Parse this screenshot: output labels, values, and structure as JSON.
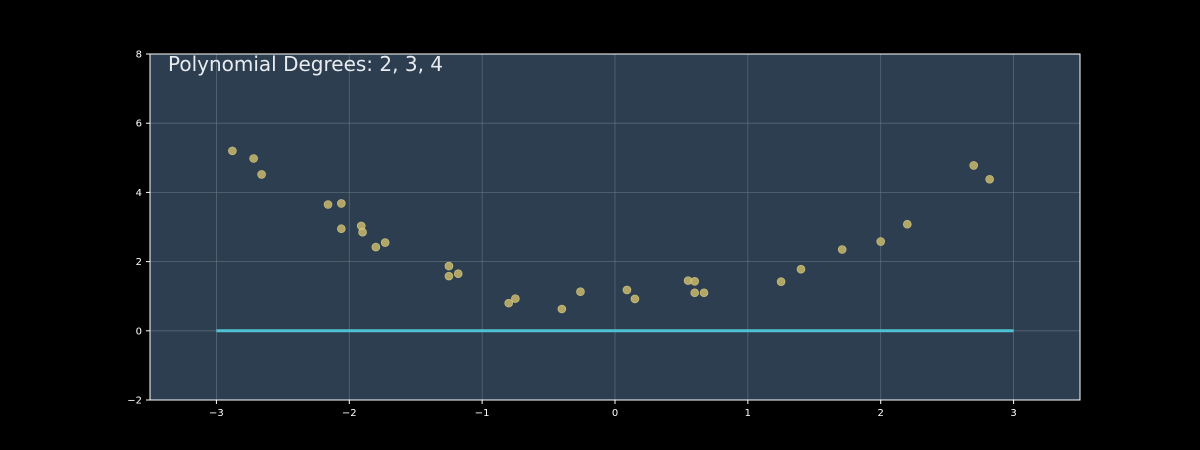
{
  "chart_data": {
    "type": "scatter",
    "title": "Polynomial Degrees: 2, 3, 4",
    "xlabel": "",
    "ylabel": "",
    "xlim": [
      -3.5,
      3.5
    ],
    "ylim": [
      -2,
      8
    ],
    "grid": true,
    "x_ticks": [
      -3,
      -2,
      -1,
      0,
      1,
      2,
      3
    ],
    "x_tick_labels": [
      "−3",
      "−2",
      "−1",
      "0",
      "1",
      "2",
      "3"
    ],
    "y_ticks": [
      -2,
      0,
      2,
      4,
      6,
      8
    ],
    "y_tick_labels": [
      "−2",
      "0",
      "2",
      "4",
      "6",
      "8"
    ],
    "colors": {
      "figure_background": "#000000",
      "plot_background": "#2d3e50",
      "points": "#c9b96a",
      "line": "#4fc1d0",
      "grid": "#6b7b8c"
    },
    "series": [
      {
        "kind": "scatter",
        "x": [
          -2.88,
          -2.72,
          -2.66,
          -2.16,
          -2.06,
          -2.06,
          -1.91,
          -1.9,
          -1.8,
          -1.73,
          -1.25,
          -1.25,
          -1.18,
          -0.8,
          -0.75,
          -0.4,
          -0.26,
          0.09,
          0.15,
          0.55,
          0.6,
          0.6,
          0.67,
          1.25,
          1.4,
          1.71,
          2.0,
          2.2,
          2.7,
          2.82
        ],
        "y": [
          5.2,
          4.98,
          4.52,
          3.65,
          3.68,
          2.95,
          3.03,
          2.85,
          2.42,
          2.55,
          1.87,
          1.58,
          1.65,
          0.8,
          0.93,
          0.63,
          1.13,
          1.18,
          0.92,
          1.45,
          1.43,
          1.1,
          1.1,
          1.42,
          1.78,
          2.35,
          2.58,
          3.08,
          4.78,
          4.38
        ]
      },
      {
        "kind": "line",
        "x": [
          -3,
          3
        ],
        "y": [
          0,
          0
        ]
      }
    ]
  }
}
